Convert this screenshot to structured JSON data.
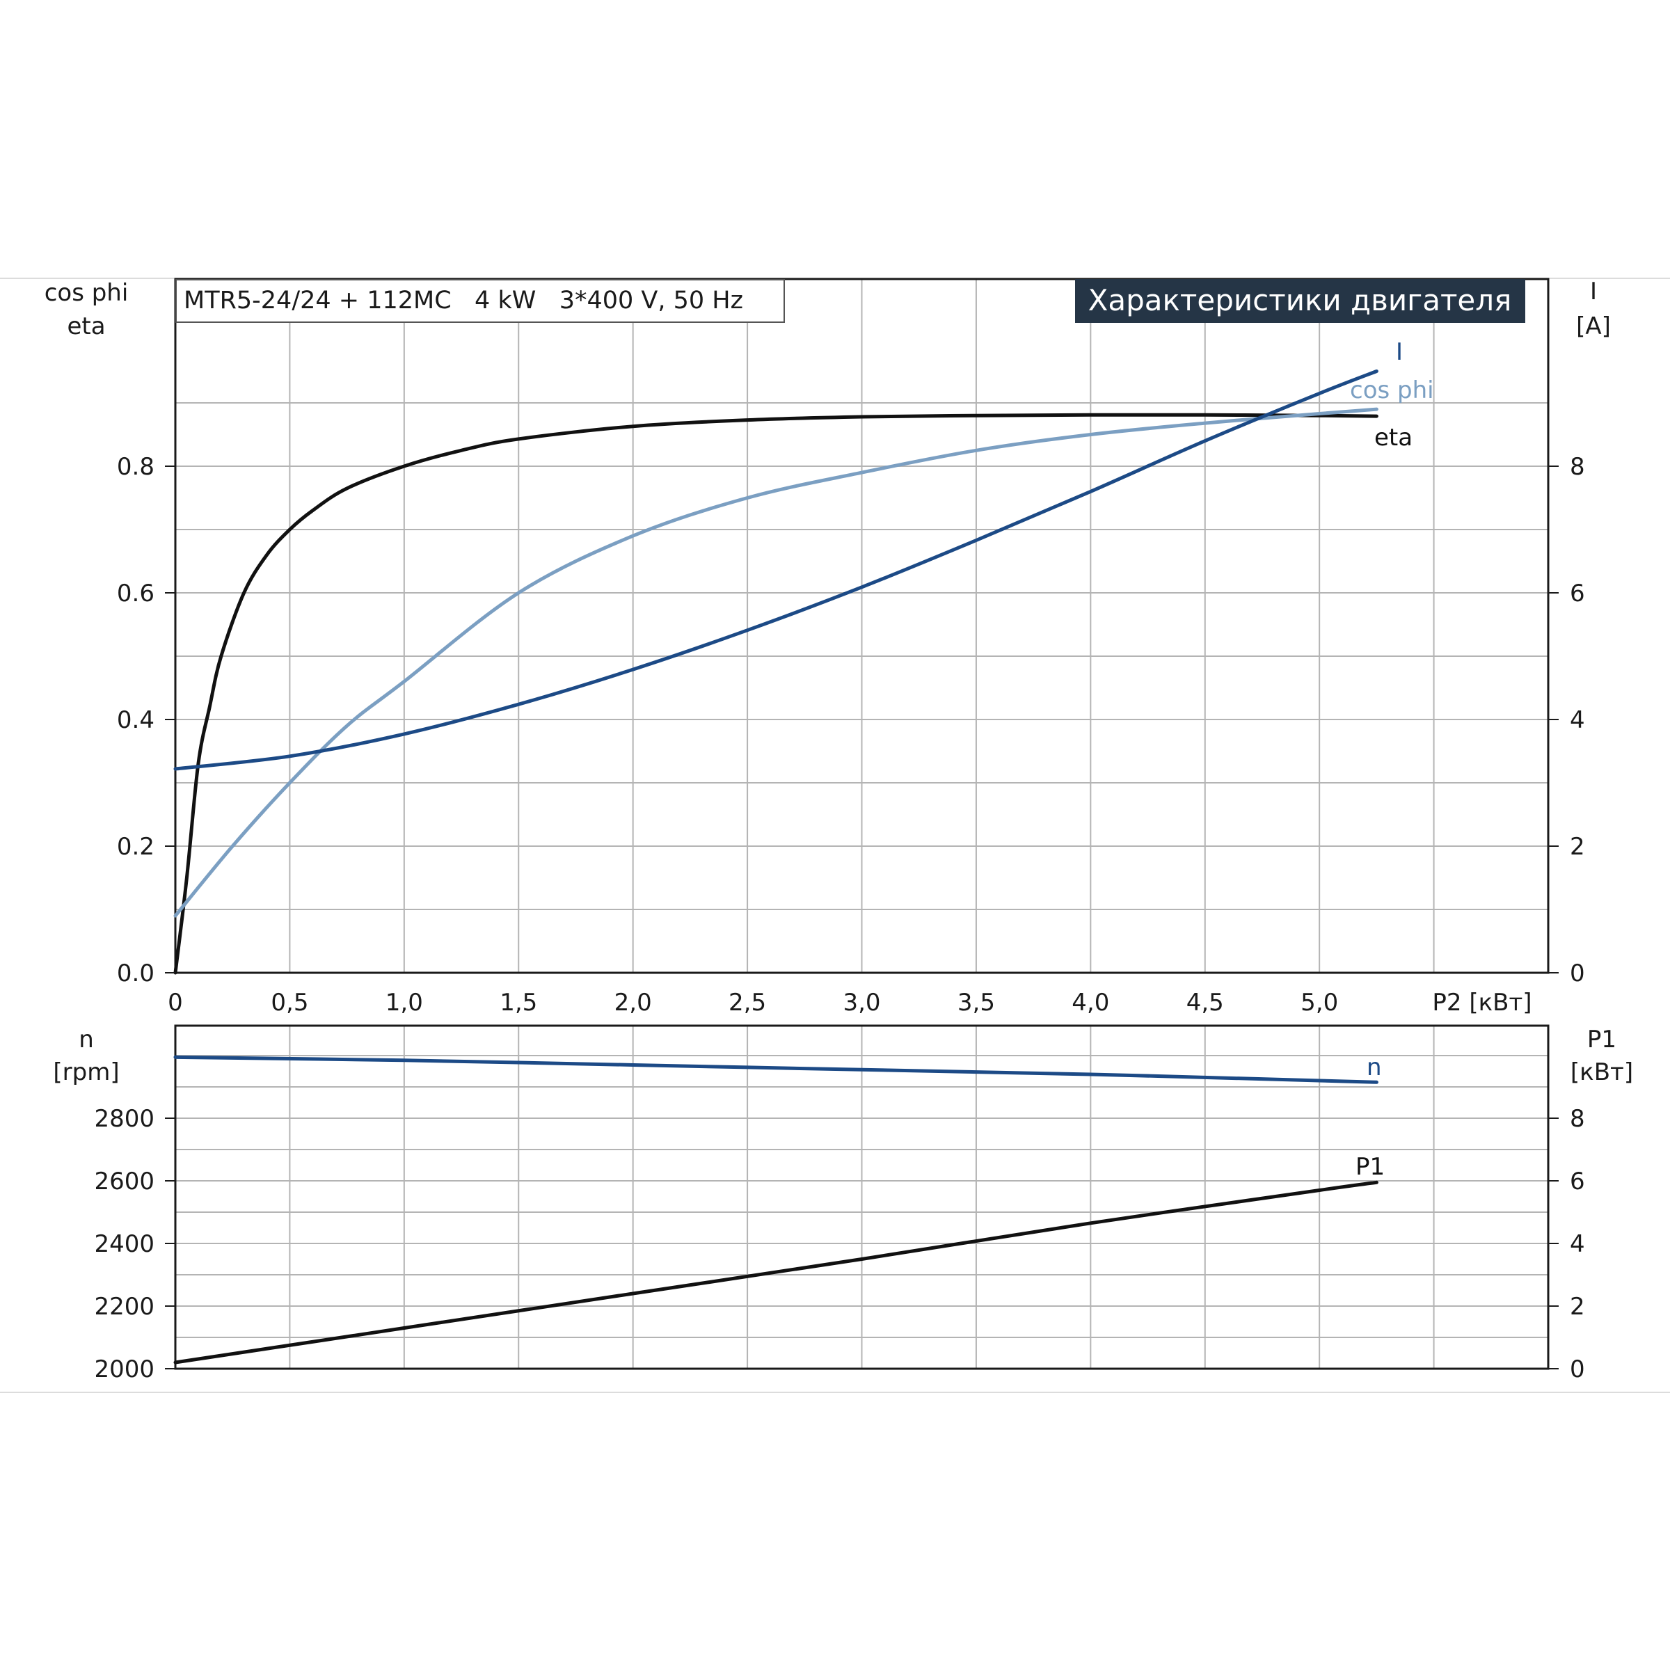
{
  "chart_data": {
    "title": "MTR5-24/24 + 112MC   4 kW   3*400 V, 50 Hz",
    "badge": "Характеристики двигателя",
    "x_axis": {
      "label": "P2 [кВт]",
      "range": [
        0,
        6.0
      ],
      "ticks": [
        0,
        0.5,
        1.0,
        1.5,
        2.0,
        2.5,
        3.0,
        3.5,
        4.0,
        4.5,
        5.0
      ],
      "tick_labels": [
        "0",
        "0,5",
        "1,0",
        "1,5",
        "2,0",
        "2,5",
        "3,0",
        "3,5",
        "4,0",
        "4,5",
        "5,0"
      ]
    },
    "top_panel": {
      "left_axis": {
        "label_line1": "cos phi",
        "label_line2": "eta",
        "range": [
          0,
          1.0
        ],
        "ticks": [
          0,
          0.2,
          0.4,
          0.6,
          0.8
        ],
        "tick_labels": [
          "0.0",
          "0.2",
          "0.4",
          "0.6",
          "0.8"
        ]
      },
      "right_axis": {
        "label_line1": "I",
        "label_line2": "[A]",
        "range": [
          0,
          10
        ],
        "ticks": [
          0,
          2,
          4,
          6,
          8
        ],
        "tick_labels": [
          "0",
          "2",
          "4",
          "6",
          "8"
        ]
      },
      "series": [
        {
          "name": "eta",
          "axis": "left",
          "color": "#111111",
          "x": [
            0,
            0.05,
            0.1,
            0.15,
            0.2,
            0.3,
            0.4,
            0.5,
            0.6,
            0.75,
            1.0,
            1.25,
            1.5,
            2.0,
            2.5,
            3.0,
            3.5,
            4.0,
            4.5,
            5.0,
            5.25
          ],
          "y": [
            0,
            0.15,
            0.33,
            0.42,
            0.5,
            0.6,
            0.66,
            0.7,
            0.73,
            0.765,
            0.8,
            0.825,
            0.843,
            0.863,
            0.873,
            0.878,
            0.88,
            0.881,
            0.881,
            0.88,
            0.879
          ]
        },
        {
          "name": "cos phi",
          "axis": "left",
          "color": "#7b9fc2",
          "x": [
            0,
            0.25,
            0.5,
            0.75,
            1.0,
            1.5,
            2.0,
            2.5,
            3.0,
            3.5,
            4.0,
            4.5,
            5.0,
            5.25
          ],
          "y": [
            0.09,
            0.2,
            0.3,
            0.39,
            0.46,
            0.6,
            0.69,
            0.75,
            0.79,
            0.825,
            0.85,
            0.868,
            0.883,
            0.89
          ]
        },
        {
          "name": "I",
          "axis": "right",
          "color": "#1c4a86",
          "x": [
            0,
            0.5,
            1.0,
            1.5,
            2.0,
            2.5,
            3.0,
            3.5,
            4.0,
            4.5,
            5.0,
            5.25
          ],
          "y": [
            3.22,
            3.42,
            3.77,
            4.24,
            4.79,
            5.41,
            6.09,
            6.83,
            7.6,
            8.4,
            9.15,
            9.5
          ]
        }
      ]
    },
    "bottom_panel": {
      "left_axis": {
        "label_line1": "n",
        "label_line2": "[rpm]",
        "range": [
          2000,
          3000
        ],
        "ticks": [
          2000,
          2200,
          2400,
          2600,
          2800
        ],
        "tick_labels": [
          "2000",
          "2200",
          "2400",
          "2600",
          "2800"
        ]
      },
      "right_axis": {
        "label_line1": "P1",
        "label_line2": "[кВт]",
        "range": [
          0,
          10
        ],
        "ticks": [
          0,
          2,
          4,
          6,
          8
        ],
        "tick_labels": [
          "0",
          "2",
          "4",
          "6",
          "8"
        ]
      },
      "series": [
        {
          "name": "n",
          "axis": "left",
          "color": "#1c4a86",
          "x": [
            0,
            1.0,
            2.0,
            3.0,
            4.0,
            5.0,
            5.25
          ],
          "y": [
            2995,
            2985,
            2970,
            2955,
            2940,
            2920,
            2915
          ]
        },
        {
          "name": "P1",
          "axis": "right",
          "color": "#111111",
          "x": [
            0,
            1.0,
            2.0,
            3.0,
            4.0,
            5.0,
            5.25
          ],
          "y": [
            0.2,
            1.3,
            2.4,
            3.5,
            4.65,
            5.7,
            5.95
          ]
        }
      ]
    }
  }
}
